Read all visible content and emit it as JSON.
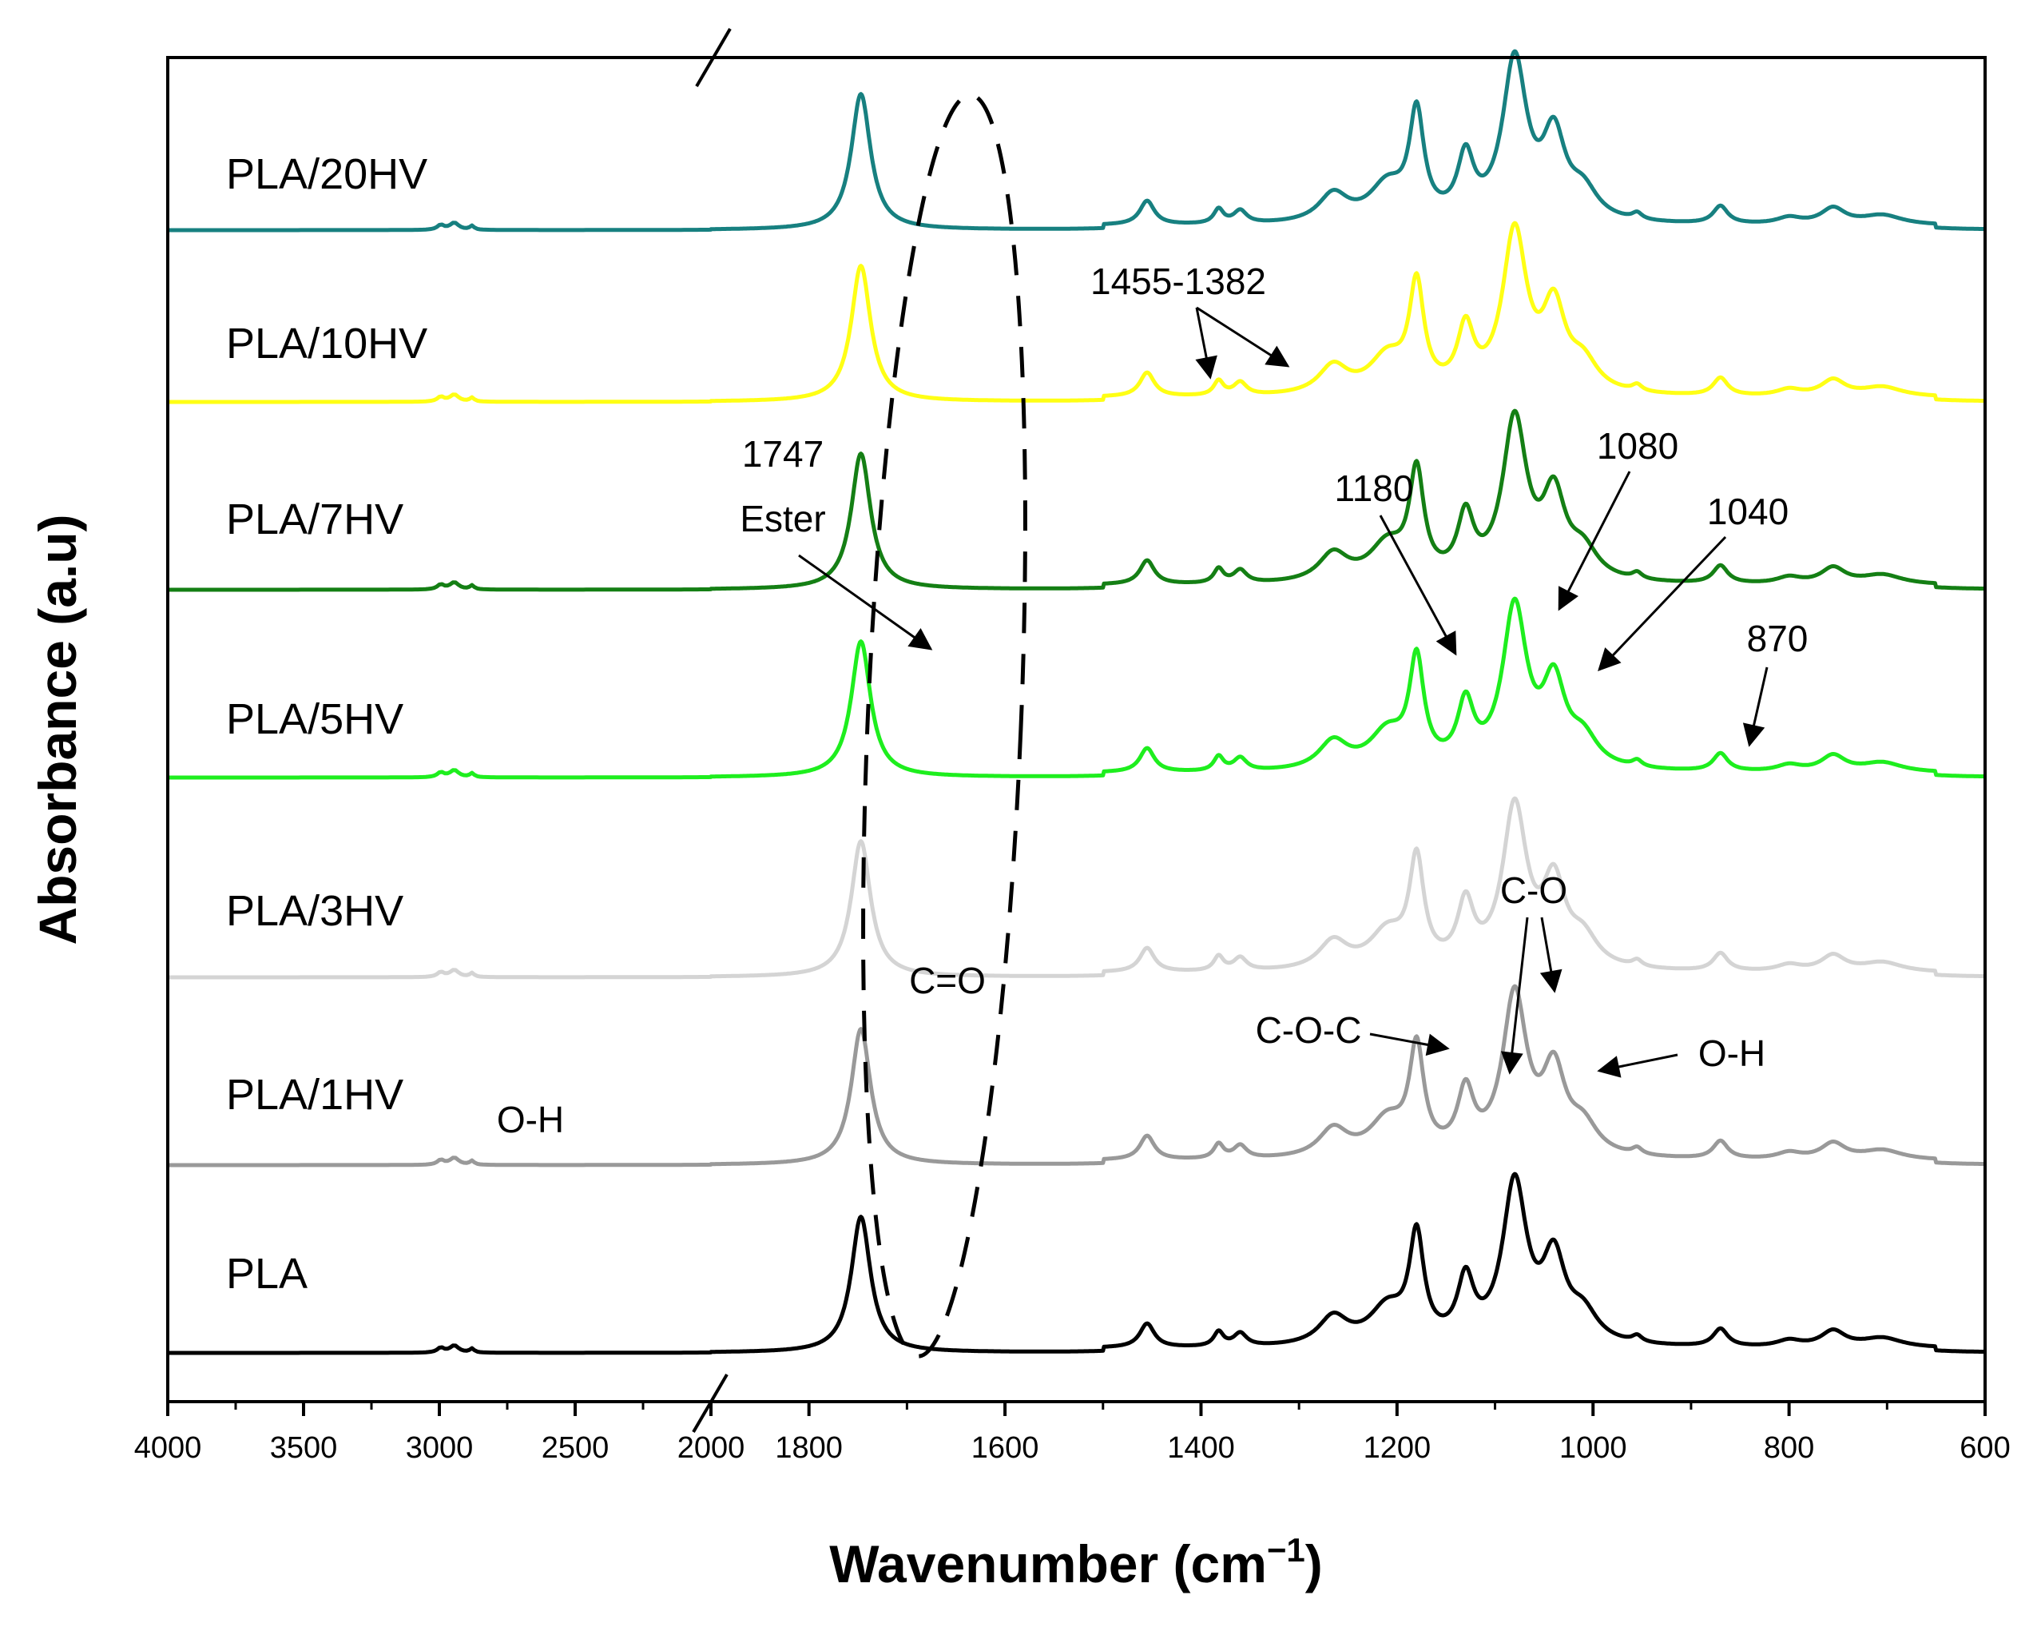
{
  "chart_data": {
    "type": "line",
    "title": "",
    "xlabel": "Wavenumber (cm",
    "xlabel_sup": "−1",
    "xlabel_close": ")",
    "ylabel": "Absorbance (a.u)",
    "x_axis": {
      "break_between": [
        2000,
        1900
      ],
      "segment_left": {
        "range": [
          4000,
          2000
        ],
        "ticks": [
          4000,
          3500,
          3000,
          2500,
          2000
        ]
      },
      "segment_right": {
        "range": [
          1900,
          600
        ],
        "ticks": [
          1800,
          1600,
          1400,
          1200,
          1000,
          800,
          600
        ]
      },
      "tick_labels": [
        "4000",
        "3500",
        "3000",
        "2500",
        "2000",
        "1800",
        "1600",
        "1400",
        "1200",
        "1000",
        "800",
        "600"
      ]
    },
    "series": [
      {
        "name": "PLA",
        "color": "#000000",
        "offset": 0.0
      },
      {
        "name": "PLA/1HV",
        "color": "#999999",
        "offset": 2.35
      },
      {
        "name": "PLA/3HV",
        "color": "#d4d4d4",
        "offset": 4.7
      },
      {
        "name": "PLA/5HV",
        "color": "#1eee1e",
        "offset": 7.2
      },
      {
        "name": "PLA/7HV",
        "color": "#147f14",
        "offset": 9.55
      },
      {
        "name": "PLA/10HV",
        "color": "#ffff14",
        "offset": 11.9
      },
      {
        "name": "PLA/20HV",
        "color": "#178080",
        "offset": 14.05
      }
    ],
    "peaks_cm": [
      {
        "x": 1747,
        "height": 1.7,
        "width": 12
      },
      {
        "x": 1455,
        "height": 0.3,
        "width": 9
      },
      {
        "x": 1382,
        "height": 0.18,
        "width": 6
      },
      {
        "x": 1360,
        "height": 0.16,
        "width": 8
      },
      {
        "x": 1265,
        "height": 0.35,
        "width": 18
      },
      {
        "x": 1210,
        "height": 0.45,
        "width": 22
      },
      {
        "x": 1180,
        "height": 1.3,
        "width": 9
      },
      {
        "x": 1130,
        "height": 0.75,
        "width": 10
      },
      {
        "x": 1080,
        "height": 2.0,
        "width": 15
      },
      {
        "x": 1040,
        "height": 1.0,
        "width": 14
      },
      {
        "x": 1010,
        "height": 0.35,
        "width": 18
      },
      {
        "x": 955,
        "height": 0.08,
        "width": 6
      },
      {
        "x": 870,
        "height": 0.22,
        "width": 9
      },
      {
        "x": 800,
        "height": 0.08,
        "width": 15
      },
      {
        "x": 755,
        "height": 0.2,
        "width": 15
      },
      {
        "x": 705,
        "height": 0.12,
        "width": 25
      },
      {
        "x": 2995,
        "height": 0.06,
        "width": 15
      },
      {
        "x": 2945,
        "height": 0.09,
        "width": 20
      },
      {
        "x": 2880,
        "height": 0.05,
        "width": 10
      }
    ],
    "annotations": {
      "ester_value": "1747",
      "ester_label": "Ester",
      "range_label": "1455-1382",
      "p1180": "1180",
      "p1080": "1080",
      "p1040": "1040",
      "p870": "870",
      "co_double": "C=O",
      "coc": "C-O-C",
      "co": "C-O",
      "oh_right": "O-H",
      "oh_left": "O-H"
    }
  }
}
